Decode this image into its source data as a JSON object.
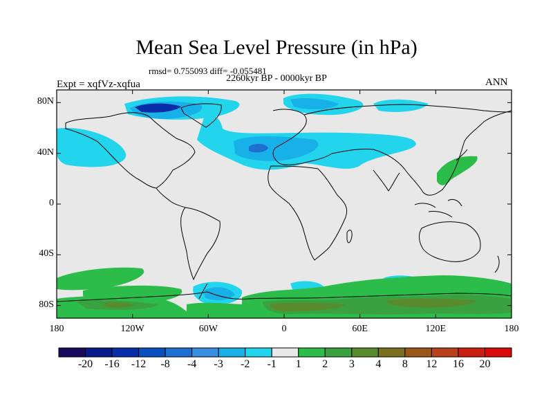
{
  "title": "Mean Sea Level Pressure (in hPa)",
  "stats": "rmsd= 0.755093 diff= -0.055481",
  "period": "2260kyr BP - 0000kyr BP",
  "experiment": "Expt = xqfVz-xqfua",
  "season": "ANN",
  "colors": {
    "land_ocean_neutral": "#e8e8e8",
    "coast": "#000000"
  },
  "chart_data": {
    "type": "heatmap",
    "title": "Mean Sea Level Pressure (in hPa)",
    "x_axis": {
      "min": -180,
      "max": 180,
      "ticks": [
        {
          "value": -180,
          "label": "180"
        },
        {
          "value": -120,
          "label": "120W"
        },
        {
          "value": -60,
          "label": "60W"
        },
        {
          "value": 0,
          "label": "0"
        },
        {
          "value": 60,
          "label": "60E"
        },
        {
          "value": 120,
          "label": "120E"
        },
        {
          "value": 180,
          "label": "180"
        }
      ]
    },
    "y_axis": {
      "min": -90,
      "max": 90,
      "ticks": [
        {
          "value": 80,
          "label": "80N"
        },
        {
          "value": 40,
          "label": "40N"
        },
        {
          "value": 0,
          "label": "0"
        },
        {
          "value": -40,
          "label": "40S"
        },
        {
          "value": -80,
          "label": "80S"
        }
      ]
    },
    "colorbar": {
      "colors": [
        "#1a0a5e",
        "#0a1a8a",
        "#0a2ea8",
        "#0a4fbf",
        "#1e6fd0",
        "#3a90e0",
        "#17b0e8",
        "#22d4ec",
        "#e8e8e8",
        "#2cbc4a",
        "#3aa040",
        "#5a8a2e",
        "#7a7020",
        "#9a5818",
        "#b8401a",
        "#c82010",
        "#d80a0a"
      ],
      "labels": [
        "-20",
        "-16",
        "-12",
        "-8",
        "-4",
        "-3",
        "-2",
        "-1",
        "1",
        "2",
        "3",
        "4",
        "8",
        "12",
        "16",
        "20"
      ]
    },
    "anomaly_regions": [
      {
        "name": "north-pacific-low",
        "lon": -160,
        "lat": 35,
        "level": -1
      },
      {
        "name": "eurasia-low",
        "lon": 10,
        "lat": 45,
        "level": -2
      },
      {
        "name": "eurasia-core",
        "lon": -10,
        "lat": 42,
        "level": -3
      },
      {
        "name": "greenland-low",
        "lon": -55,
        "lat": 80,
        "level": -8
      },
      {
        "name": "east-asia-high",
        "lon": 140,
        "lat": 35,
        "level": 2
      },
      {
        "name": "southern-ocean-high",
        "lon": 60,
        "lat": -70,
        "level": 2
      },
      {
        "name": "antarctic-high",
        "lon": 100,
        "lat": -82,
        "level": 3
      },
      {
        "name": "weddell-low",
        "lon": -40,
        "lat": -72,
        "level": -2
      }
    ]
  }
}
